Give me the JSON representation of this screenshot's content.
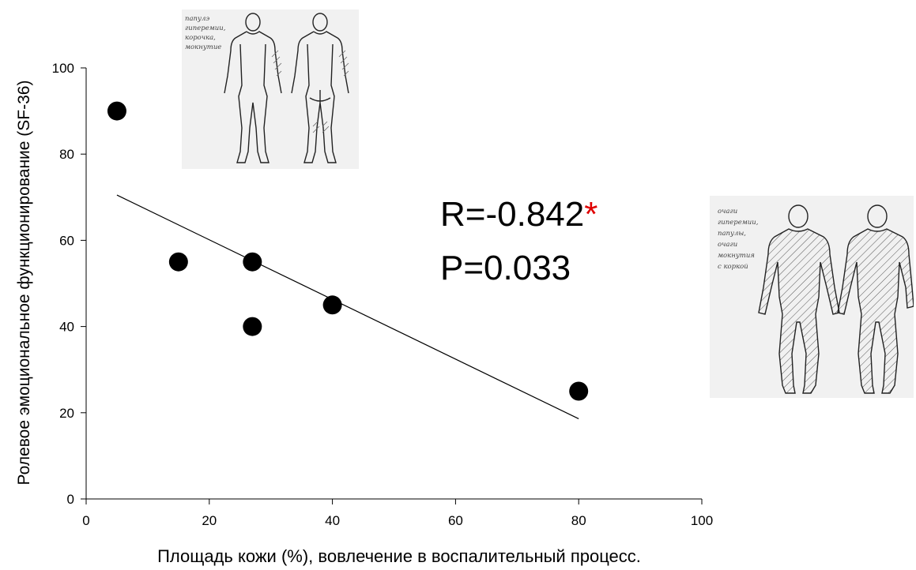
{
  "chart_data": {
    "type": "scatter",
    "xlabel": "Площадь кожи (%),  вовлечение в воспалительный процесс.",
    "ylabel": "Ролевое эмоциональное функционирование (SF-36)",
    "xlim": [
      0,
      100
    ],
    "ylim": [
      0,
      100
    ],
    "x_ticks": [
      0,
      20,
      40,
      60,
      80,
      100
    ],
    "y_ticks": [
      0,
      20,
      40,
      60,
      80,
      100
    ],
    "grid": false,
    "series": [
      {
        "points": [
          {
            "x": 5,
            "y": 90
          },
          {
            "x": 15,
            "y": 55
          },
          {
            "x": 27,
            "y": 55
          },
          {
            "x": 27,
            "y": 40
          },
          {
            "x": 40,
            "y": 45
          },
          {
            "x": 80,
            "y": 25
          }
        ],
        "color": "#000000"
      }
    ],
    "trendline": {
      "x": [
        5,
        80
      ],
      "y": [
        70.5,
        18.6
      ],
      "color": "#000000"
    },
    "annotations": {
      "r_text": "R=-0.842",
      "r_star": "*",
      "p_text": "P=0.033",
      "star_color": "#e00000"
    },
    "figures": [
      {
        "name": "body-diagram-mild",
        "notes": [
          "папулэ",
          "гиперемии,",
          "корочка,",
          "мокнутие"
        ]
      },
      {
        "name": "body-diagram-severe",
        "notes": [
          "очаги",
          "гиперемии,",
          "папулы,",
          "очаги",
          "мокнутия",
          "с коркой"
        ]
      }
    ]
  }
}
